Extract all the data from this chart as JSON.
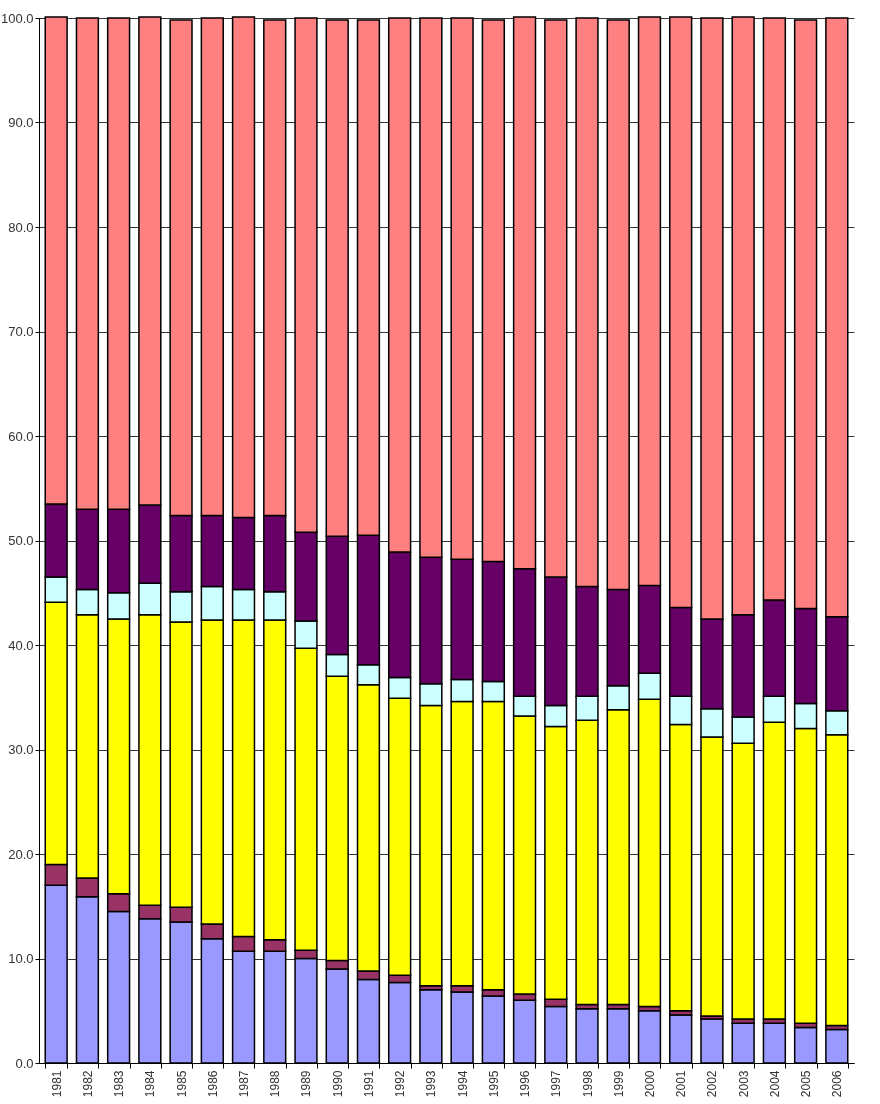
{
  "chart_data": {
    "type": "bar",
    "stacked": true,
    "categories": [
      "1981",
      "1982",
      "1983",
      "1984",
      "1985",
      "1986",
      "1987",
      "1988",
      "1989",
      "1990",
      "1991",
      "1992",
      "1993",
      "1994",
      "1995",
      "1996",
      "1997",
      "1998",
      "1999",
      "2000",
      "2001",
      "2002",
      "2003",
      "2004",
      "2005",
      "2006"
    ],
    "series": [
      {
        "color": "#9999ff",
        "values": [
          17.0,
          15.9,
          14.5,
          13.8,
          13.5,
          11.9,
          10.7,
          10.7,
          10.0,
          9.0,
          8.0,
          7.7,
          7.0,
          6.8,
          6.4,
          6.0,
          5.4,
          5.2,
          5.2,
          5.0,
          4.6,
          4.2,
          3.8,
          3.8,
          3.4,
          3.2
        ]
      },
      {
        "color": "#993366",
        "values": [
          2.0,
          1.8,
          1.7,
          1.3,
          1.4,
          1.4,
          1.4,
          1.1,
          0.8,
          0.8,
          0.8,
          0.7,
          0.4,
          0.6,
          0.6,
          0.6,
          0.7,
          0.4,
          0.4,
          0.4,
          0.4,
          0.3,
          0.4,
          0.4,
          0.4,
          0.4
        ]
      },
      {
        "color": "#ffff00",
        "values": [
          25.1,
          25.2,
          26.3,
          27.8,
          27.3,
          29.1,
          30.3,
          30.6,
          28.9,
          27.2,
          27.4,
          26.5,
          26.8,
          27.2,
          27.6,
          26.6,
          26.1,
          27.2,
          28.2,
          29.4,
          27.4,
          26.7,
          26.4,
          28.4,
          28.2,
          27.8
        ]
      },
      {
        "color": "#ccffff",
        "values": [
          2.4,
          2.4,
          2.5,
          3.0,
          2.9,
          3.2,
          2.9,
          2.7,
          2.6,
          2.1,
          1.9,
          2.0,
          2.1,
          2.1,
          1.9,
          1.9,
          2.0,
          2.3,
          2.3,
          2.5,
          2.7,
          2.7,
          2.5,
          2.5,
          2.4,
          2.3
        ]
      },
      {
        "color": "#660066",
        "values": [
          7.0,
          7.7,
          8.0,
          7.5,
          7.3,
          6.8,
          6.9,
          7.3,
          8.5,
          11.3,
          12.4,
          12.0,
          12.1,
          11.5,
          11.5,
          12.2,
          12.3,
          10.5,
          9.2,
          8.4,
          8.5,
          8.6,
          9.8,
          9.2,
          9.1,
          9.0
        ]
      },
      {
        "color": "#ff8080",
        "values": [
          46.6,
          47.0,
          47.0,
          46.7,
          47.4,
          47.6,
          47.9,
          47.4,
          49.2,
          49.4,
          49.3,
          51.1,
          51.6,
          51.8,
          51.8,
          52.8,
          53.3,
          54.4,
          54.5,
          54.4,
          56.5,
          57.5,
          57.2,
          55.7,
          56.3,
          57.3
        ]
      }
    ],
    "ylim": [
      0,
      100
    ],
    "yticks": [
      {
        "value": 0,
        "label": "0.0"
      },
      {
        "value": 10,
        "label": "10.0"
      },
      {
        "value": 20,
        "label": "20.0"
      },
      {
        "value": 30,
        "label": "30.0"
      },
      {
        "value": 40,
        "label": "40.0"
      },
      {
        "value": 50,
        "label": "50.0"
      },
      {
        "value": 60,
        "label": "60.0"
      },
      {
        "value": 70,
        "label": "70.0"
      },
      {
        "value": 80,
        "label": "80.0"
      },
      {
        "value": 90,
        "label": "90.0"
      },
      {
        "value": 100,
        "label": "100.0"
      }
    ],
    "grid": "y"
  }
}
